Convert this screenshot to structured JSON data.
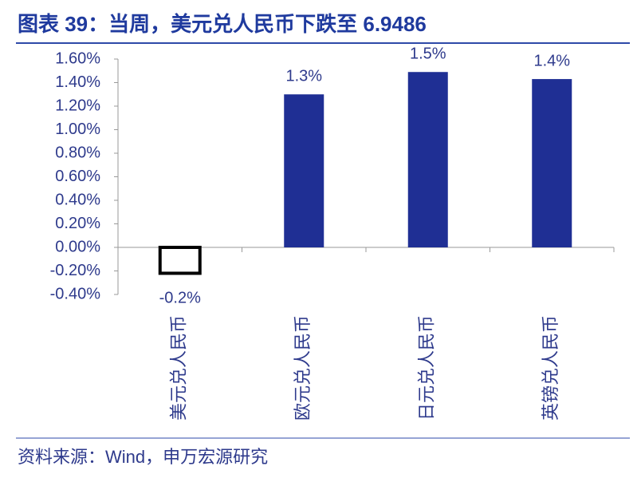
{
  "chart_data": {
    "type": "bar",
    "title": "图表 39：当周，美元兑人民币下跌至 6.9486",
    "source": "资料来源：Wind，申万宏源研究",
    "categories": [
      "美元兑人民币",
      "欧元兑人民币",
      "日元兑人民币",
      "英镑兑人民币"
    ],
    "values": [
      -0.22,
      1.3,
      1.49,
      1.43
    ],
    "value_labels": [
      "-0.2%",
      "1.3%",
      "1.5%",
      "1.4%"
    ],
    "colors": [
      "#ffffff",
      "#1f2f94",
      "#1f2f94",
      "#1f2f94"
    ],
    "ylim": [
      -0.4,
      1.6
    ],
    "yticks": [
      {
        "value": -0.4,
        "label": "-0.40%"
      },
      {
        "value": -0.2,
        "label": "-0.20%"
      },
      {
        "value": 0,
        "label": "0.00%"
      },
      {
        "value": 0.2,
        "label": "0.20%"
      },
      {
        "value": 0.4,
        "label": "0.40%"
      },
      {
        "value": 0.6,
        "label": "0.60%"
      },
      {
        "value": 0.8,
        "label": "0.80%"
      },
      {
        "value": 1.0,
        "label": "1.00%"
      },
      {
        "value": 1.2,
        "label": "1.20%"
      },
      {
        "value": 1.4,
        "label": "1.40%"
      },
      {
        "value": 1.6,
        "label": "1.60%"
      }
    ],
    "grid": false
  }
}
